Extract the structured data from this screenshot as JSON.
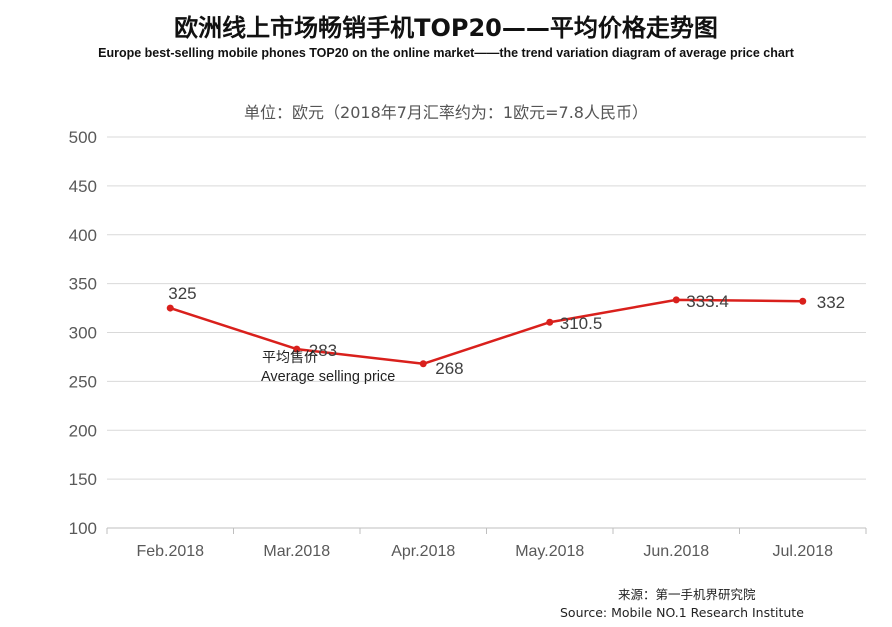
{
  "title": "欧洲线上市场畅销手机TOP20——平均价格走势图",
  "subtitle": "Europe best-selling mobile phones TOP20 on the online market——the trend variation diagram of average price chart",
  "unit_note": "单位：欧元（2018年7月汇率约为：1欧元=7.8人民币）",
  "source_cn": "来源：第一手机界研究院",
  "source_en": "Source: Mobile NO.1 Research Institute",
  "colors": {
    "line": "#d9201c",
    "grid": "#d9d9d9",
    "axis_text": "#595959",
    "label_text": "#404040"
  },
  "chart_data": {
    "type": "line",
    "categories": [
      "Feb.2018",
      "Mar.2018",
      "Apr.2018",
      "May.2018",
      "Jun.2018",
      "Jul.2018"
    ],
    "series": [
      {
        "name": "平均售价 Average selling price",
        "name_cn": "平均售价",
        "name_en": "Average selling price",
        "values": [
          325,
          283,
          268,
          310.5,
          333.4,
          332
        ],
        "value_labels": [
          "325",
          "283",
          "268",
          "310.5",
          "333.4",
          "332"
        ]
      }
    ],
    "ylim": [
      100,
      500
    ],
    "yticks": [
      100,
      150,
      200,
      250,
      300,
      350,
      400,
      450,
      500
    ],
    "grid": true,
    "legend": "inline"
  }
}
